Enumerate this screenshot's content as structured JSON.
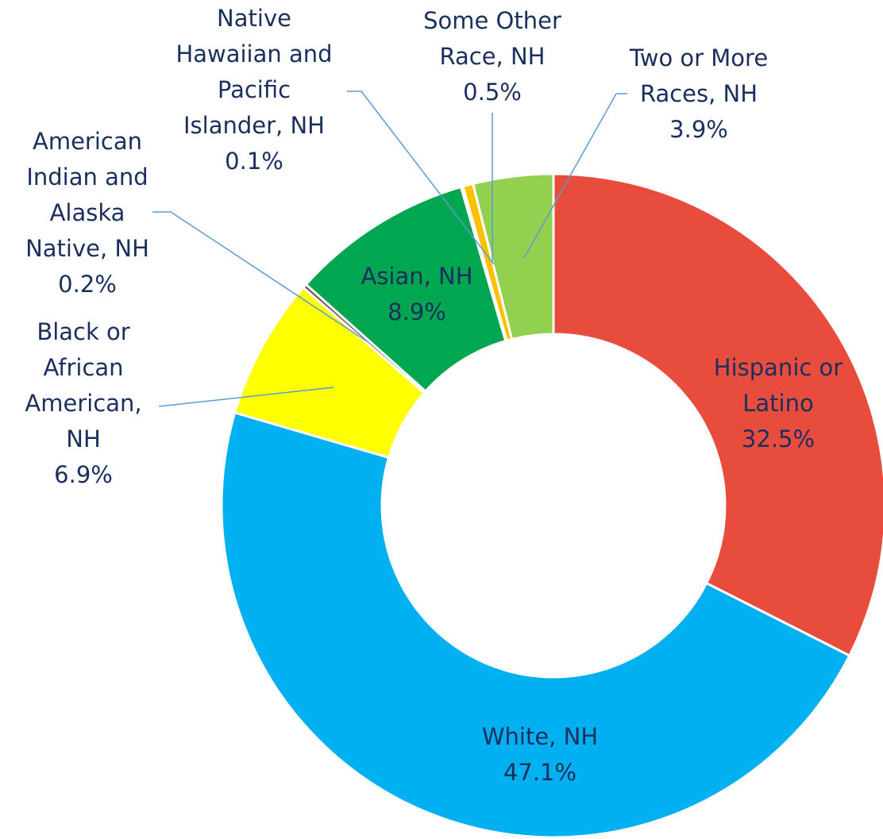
{
  "chart_data": {
    "type": "donut",
    "categories": [
      "Hispanic or Latino",
      "White, NH",
      "Black or African American, NH",
      "American Indian and Alaska Native, NH",
      "Asian, NH",
      "Native Hawaiian and Pacific Islander, NH",
      "Some Other Race, NH",
      "Two or More Races, NH"
    ],
    "values": [
      32.5,
      47.1,
      6.9,
      0.2,
      8.9,
      0.1,
      0.5,
      3.9
    ],
    "value_labels": [
      "32.5%",
      "47.1%",
      "6.9%",
      "0.2%",
      "8.9%",
      "0.1%",
      "0.5%",
      "3.9%"
    ],
    "colors": [
      "#e84c3d",
      "#00b0f0",
      "#ffff00",
      "#7b3f4a",
      "#00a650",
      "#c0504d",
      "#ffc000",
      "#92d050"
    ]
  }
}
